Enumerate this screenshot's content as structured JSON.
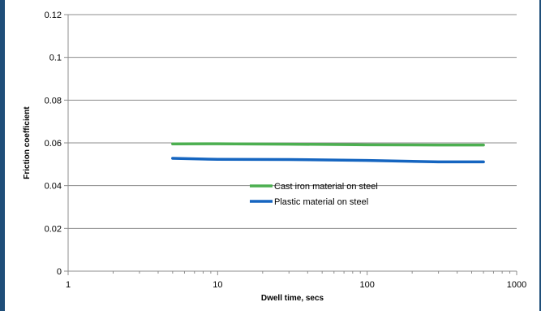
{
  "chart_data": {
    "type": "line",
    "title": "",
    "xlabel": "Dwell time, secs",
    "ylabel": "Friction coefficient",
    "x_scale": "log",
    "xlim": [
      1,
      1000
    ],
    "ylim": [
      0,
      0.12
    ],
    "x_ticks": [
      1,
      10,
      100,
      1000
    ],
    "x_tick_labels": [
      "1",
      "10",
      "100",
      "1000"
    ],
    "y_ticks": [
      0,
      0.02,
      0.04,
      0.06,
      0.08,
      0.1,
      0.12
    ],
    "y_tick_labels": [
      "0",
      "0.02",
      "0.04",
      "0.06",
      "0.08",
      "0.1",
      "0.12"
    ],
    "grid": "horizontal",
    "legend_position": "center",
    "series": [
      {
        "name": "Cast iron material on steel",
        "color": "#4caf50",
        "x": [
          5,
          10,
          30,
          100,
          300,
          600
        ],
        "values": [
          0.0595,
          0.0596,
          0.0594,
          0.0591,
          0.059,
          0.059
        ]
      },
      {
        "name": "Plastic material on steel",
        "color": "#1565c0",
        "x": [
          5,
          10,
          30,
          100,
          300,
          600
        ],
        "values": [
          0.0528,
          0.0523,
          0.0522,
          0.0518,
          0.0511,
          0.0511
        ]
      }
    ]
  }
}
